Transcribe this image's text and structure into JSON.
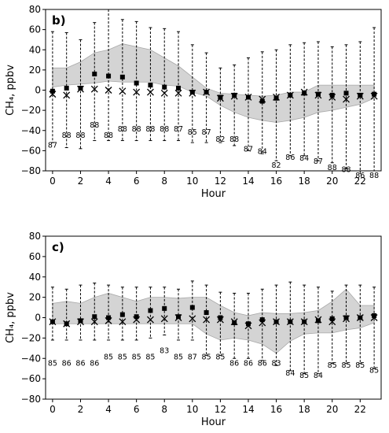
{
  "chart_data": [
    {
      "type": "scatter",
      "panel_label": "b)",
      "ylabel": "CH₄, ppbv",
      "xlabel": "Hour",
      "xlim": [
        -0.5,
        23.5
      ],
      "ylim": [
        -80,
        80
      ],
      "xticks": [
        0,
        2,
        4,
        6,
        8,
        10,
        12,
        14,
        16,
        18,
        20,
        22
      ],
      "yticks": [
        -80,
        -60,
        -40,
        -20,
        0,
        20,
        40,
        60,
        80
      ],
      "x": [
        0,
        1,
        2,
        3,
        4,
        5,
        6,
        7,
        8,
        9,
        10,
        11,
        12,
        13,
        14,
        15,
        16,
        17,
        18,
        19,
        20,
        21,
        22,
        23
      ],
      "series": [
        {
          "marker": "square",
          "values": [
            -1,
            2,
            2,
            16,
            14,
            13,
            7,
            5,
            3,
            2,
            -2,
            -2,
            -7,
            -5,
            -7,
            -11,
            -8,
            -5,
            -3,
            -4,
            -5,
            -3,
            -5,
            -4
          ]
        },
        {
          "marker": "x",
          "values": [
            -4,
            -5,
            1,
            1,
            0,
            -1,
            -2,
            -2,
            -3,
            -3,
            -3,
            -2,
            -8,
            -6,
            -7,
            -9,
            -7,
            -5,
            -2,
            -5,
            -7,
            -9,
            -6,
            -6
          ]
        }
      ],
      "band": {
        "upper": [
          22,
          22,
          28,
          37,
          40,
          46,
          43,
          40,
          32,
          24,
          13,
          2,
          -3,
          -4,
          -5,
          -6,
          -5,
          -2,
          -2,
          5,
          5,
          5,
          5,
          5
        ],
        "lower": [
          3,
          5,
          6,
          7,
          9,
          8,
          8,
          8,
          5,
          4,
          -2,
          -6,
          -15,
          -22,
          -27,
          -30,
          -32,
          -30,
          -27,
          -22,
          -20,
          -17,
          -14,
          -8
        ]
      },
      "whiskers": {
        "top": [
          58,
          57,
          50,
          67,
          80,
          70,
          68,
          62,
          61,
          58,
          45,
          37,
          22,
          25,
          32,
          38,
          40,
          45,
          47,
          48,
          43,
          45,
          48,
          62
        ],
        "bottom": [
          -52,
          -57,
          -58,
          -50,
          -50,
          -50,
          -50,
          -50,
          -50,
          -50,
          -52,
          -52,
          -52,
          -55,
          -60,
          -63,
          -70,
          -65,
          -65,
          -70,
          -72,
          -78,
          -80,
          -80
        ]
      },
      "n_labels": [
        "87",
        "88",
        "88",
        "88",
        "88",
        "88",
        "88",
        "88",
        "88",
        "87",
        "85",
        "87",
        "82",
        "88",
        "87",
        "84",
        "82",
        "86",
        "84",
        "87",
        "88",
        "88",
        "86",
        "88"
      ],
      "n_label_y": [
        -50,
        -40,
        -40,
        -30,
        -40,
        -34,
        -34,
        -34,
        -34,
        -34,
        -37,
        -37,
        -44,
        -44,
        -54,
        -56,
        -70,
        -62,
        -63,
        -66,
        -72,
        -74,
        -80,
        -80
      ]
    },
    {
      "type": "scatter",
      "panel_label": "c)",
      "ylabel": "CH₄, ppbv",
      "xlabel": "Hour",
      "xlim": [
        -0.5,
        23.5
      ],
      "ylim": [
        -80,
        80
      ],
      "xticks": [
        0,
        2,
        4,
        6,
        8,
        10,
        12,
        14,
        16,
        18,
        20,
        22
      ],
      "yticks": [
        -80,
        -60,
        -40,
        -20,
        0,
        20,
        40,
        60,
        80
      ],
      "x": [
        0,
        1,
        2,
        3,
        4,
        5,
        6,
        7,
        8,
        9,
        10,
        11,
        12,
        13,
        14,
        15,
        16,
        17,
        18,
        19,
        20,
        21,
        22,
        23
      ],
      "series": [
        {
          "marker": "square",
          "values": [
            -4,
            -6,
            -3,
            1,
            0,
            3,
            1,
            7,
            9,
            1,
            10,
            5,
            0,
            -5,
            -6,
            -2,
            -4,
            -4,
            -4,
            -3,
            -1,
            0,
            0,
            2
          ]
        },
        {
          "marker": "x",
          "values": [
            -4,
            -6,
            -4,
            -4,
            -3,
            -4,
            -2,
            -2,
            -1,
            0,
            -1,
            -2,
            -2,
            -4,
            -8,
            -5,
            -4,
            -4,
            -4,
            -2,
            -4,
            -1,
            0,
            0
          ]
        }
      ],
      "band": {
        "upper": [
          14,
          16,
          14,
          20,
          24,
          20,
          16,
          20,
          20,
          19,
          20,
          20,
          12,
          5,
          2,
          5,
          4,
          4,
          5,
          7,
          16,
          28,
          12,
          12
        ],
        "lower": [
          -6,
          -6,
          -6,
          -6,
          -6,
          -6,
          -6,
          -6,
          -6,
          -6,
          -6,
          -16,
          -22,
          -20,
          -22,
          -26,
          -35,
          -23,
          -16,
          -15,
          -15,
          -12,
          -10,
          -5
        ]
      },
      "whiskers": {
        "top": [
          30,
          28,
          32,
          34,
          32,
          30,
          30,
          30,
          30,
          28,
          36,
          32,
          25,
          24,
          24,
          28,
          32,
          35,
          32,
          30,
          26,
          32,
          32,
          30
        ],
        "bottom": [
          -22,
          -22,
          -22,
          -22,
          -22,
          -22,
          -22,
          -20,
          -17,
          -22,
          -22,
          -37,
          -37,
          -40,
          -40,
          -42,
          -47,
          -52,
          -55,
          -55,
          -45,
          -45,
          -45,
          -50
        ]
      },
      "n_labels": [
        "85",
        "86",
        "86",
        "86",
        "85",
        "85",
        "85",
        "85",
        "83",
        "85",
        "87",
        "85",
        "85",
        "86",
        "86",
        "86",
        "83",
        "84",
        "85",
        "84",
        "85",
        "85",
        "85",
        "85"
      ],
      "n_label_y": [
        -40,
        -40,
        -40,
        -40,
        -34,
        -34,
        -34,
        -34,
        -28,
        -34,
        -34,
        -34,
        -34,
        -40,
        -40,
        -40,
        -40,
        -50,
        -52,
        -52,
        -42,
        -42,
        -42,
        -47
      ]
    }
  ]
}
